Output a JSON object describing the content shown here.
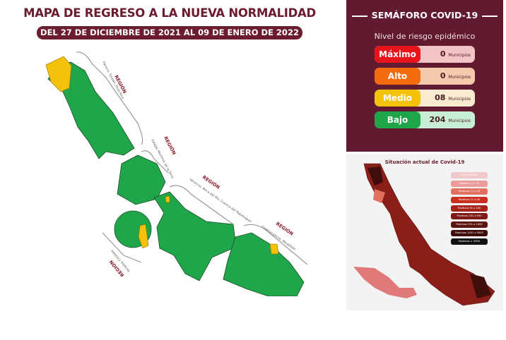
{
  "header": {
    "title": "MAPA DE REGRESO A LA NUEVA NORMALIDAD",
    "subtitle": "DEL 27 DE DICIEMBRE DE 2021 AL 09 DE ENERO DE 2022"
  },
  "regions": [
    {
      "label": "REGIÓN",
      "cities": "Pánuco, Tuxpan, Poza Rica"
    },
    {
      "label": "REGIÓN",
      "cities": "Xalapa, Martínez de la Torre"
    },
    {
      "label": "REGIÓN",
      "cities": "Veracruz, Boca del Río, Cuenca del Papaloapan"
    },
    {
      "label": "REGIÓN",
      "cities": "Coatzacoalcos, Minatitlán"
    },
    {
      "label": "REGIÓN",
      "cities": "Orizaba, Córdoba"
    }
  ],
  "colors": {
    "bajo": "#1fa64a",
    "medio": "#f5c20b",
    "maroon": "#621a30"
  },
  "semaforo": {
    "title": "SEMÁFORO COVID-19",
    "subtitle": "Nivel de riesgo epidémico",
    "levels": [
      {
        "name": "Máximo",
        "count": "0",
        "unit": "Municipios",
        "color": "#e8141b",
        "bg": "#f2c4c6"
      },
      {
        "name": "Alto",
        "count": "0",
        "unit": "Municipios",
        "color": "#f26b0f",
        "bg": "#f5c9ae"
      },
      {
        "name": "Medio",
        "count": "08",
        "unit": "Municipios",
        "color": "#f5c20b",
        "bg": "#f8ebcf"
      },
      {
        "name": "Bajo",
        "count": "204",
        "unit": "Municipios",
        "color": "#1fa64a",
        "bg": "#c8efd6"
      }
    ]
  },
  "situacion": {
    "title": "Situación actual de Covid-19",
    "legend": [
      {
        "label": "Sin positivos",
        "color": "#f2c9cb"
      },
      {
        "label": "Positivos 1 a 10",
        "color": "#ec9a9a"
      },
      {
        "label": "Positivos 11 a 20",
        "color": "#e2705f"
      },
      {
        "label": "Positivos 21 a 50",
        "color": "#c9301e"
      },
      {
        "label": "Positivos 51 a 200",
        "color": "#a5231a"
      },
      {
        "label": "Positivos 201 a 500",
        "color": "#7e1a16"
      },
      {
        "label": "Positivos 501 a 1000",
        "color": "#5c1411"
      },
      {
        "label": "Positivos 1001 a 5000",
        "color": "#3e0d0c"
      },
      {
        "label": "Positivos > 5000",
        "color": "#111"
      }
    ]
  }
}
